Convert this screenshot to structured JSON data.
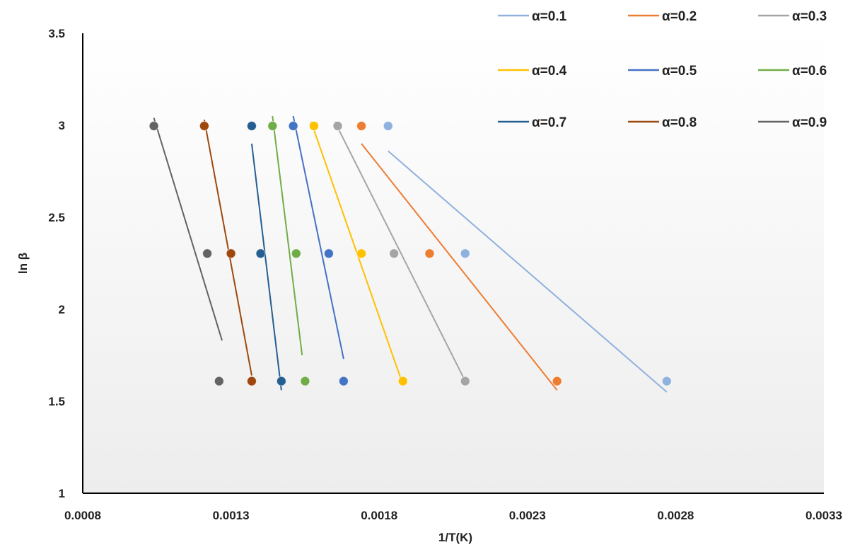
{
  "chart_data": {
    "type": "scatter",
    "xlabel": "1/T(K)",
    "ylabel": "ln β",
    "xlim": [
      0.0008,
      0.0033
    ],
    "ylim": [
      1,
      3.5
    ],
    "xticks": [
      "0.0008",
      "0.0013",
      "0.0018",
      "0.0023",
      "0.0028",
      "0.0033"
    ],
    "yticks": [
      "1",
      "1.5",
      "2",
      "2.5",
      "3",
      "3.5"
    ],
    "legend_position": "top-right",
    "grid": false,
    "series": [
      {
        "name": "α=0.1",
        "color": "#8fb1de",
        "x": [
          0.00183,
          0.00209,
          0.00277
        ],
        "y": [
          2.996,
          2.303,
          1.609
        ],
        "fit": [
          [
            0.00183,
            2.86
          ],
          [
            0.00277,
            1.55
          ]
        ]
      },
      {
        "name": "α=0.2",
        "color": "#ed7d31",
        "x": [
          0.00174,
          0.00197,
          0.0024
        ],
        "y": [
          2.996,
          2.303,
          1.609
        ],
        "fit": [
          [
            0.00174,
            2.9
          ],
          [
            0.0024,
            1.56
          ]
        ]
      },
      {
        "name": "α=0.3",
        "color": "#a5a5a5",
        "x": [
          0.00166,
          0.00185,
          0.00209
        ],
        "y": [
          2.996,
          2.303,
          1.609
        ],
        "fit": [
          [
            0.00165,
            3.02
          ],
          [
            0.00209,
            1.61
          ]
        ]
      },
      {
        "name": "α=0.4",
        "color": "#ffc000",
        "x": [
          0.00158,
          0.00174,
          0.00188
        ],
        "y": [
          2.996,
          2.303,
          1.609
        ],
        "fit": [
          [
            0.00157,
            3.02
          ],
          [
            0.00188,
            1.59
          ]
        ]
      },
      {
        "name": "α=0.5",
        "color": "#4472c4",
        "x": [
          0.00151,
          0.00163,
          0.00168
        ],
        "y": [
          2.996,
          2.303,
          1.609
        ],
        "fit": [
          [
            0.00151,
            3.05
          ],
          [
            0.00168,
            1.73
          ]
        ]
      },
      {
        "name": "α=0.6",
        "color": "#70ad47",
        "x": [
          0.00144,
          0.00152,
          0.00155
        ],
        "y": [
          2.996,
          2.303,
          1.609
        ],
        "fit": [
          [
            0.00144,
            3.05
          ],
          [
            0.00154,
            1.75
          ]
        ]
      },
      {
        "name": "α=0.7",
        "color": "#255e91",
        "x": [
          0.00137,
          0.0014,
          0.00147
        ],
        "y": [
          2.996,
          2.303,
          1.609
        ],
        "fit": [
          [
            0.00137,
            2.9
          ],
          [
            0.00147,
            1.56
          ]
        ]
      },
      {
        "name": "α=0.8",
        "color": "#9e480e",
        "x": [
          0.00121,
          0.0013,
          0.00137
        ],
        "y": [
          2.996,
          2.303,
          1.609
        ],
        "fit": [
          [
            0.00121,
            3.03
          ],
          [
            0.00137,
            1.64
          ]
        ]
      },
      {
        "name": "α=0.9",
        "color": "#636363",
        "x": [
          0.00104,
          0.00122,
          0.00126
        ],
        "y": [
          2.996,
          2.303,
          1.609
        ],
        "fit": [
          [
            0.00104,
            3.04
          ],
          [
            0.00127,
            1.83
          ]
        ]
      }
    ]
  }
}
